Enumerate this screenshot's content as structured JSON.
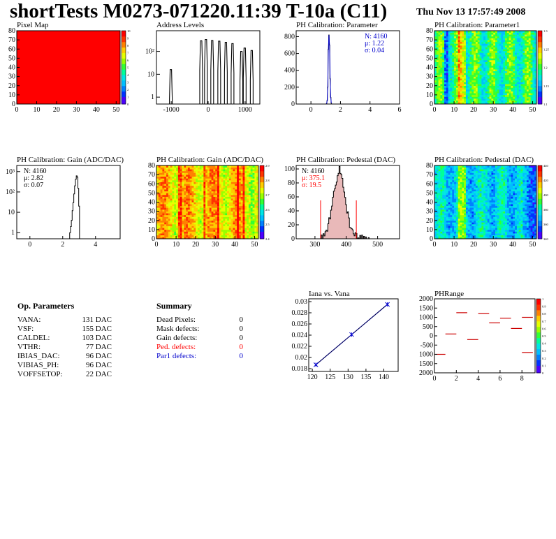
{
  "header": {
    "title": "shortTests M0273-071220.11:39 T-10a (C11)",
    "date": "Thu Nov 13 17:57:49 2008"
  },
  "colors": {
    "accent_blue": "#0000cc",
    "accent_red": "#ff0000",
    "hist_fill_red": "#cc3333"
  },
  "chart_data": [
    {
      "id": "pixel-map",
      "type": "heatmap",
      "title": "Pixel Map",
      "x_ticks": [
        "0",
        "10",
        "20",
        "30",
        "40",
        "50"
      ],
      "y_ticks": [
        "0",
        "10",
        "20",
        "30",
        "40",
        "50",
        "60",
        "70",
        "80"
      ],
      "xlim": [
        0,
        52
      ],
      "ylim": [
        0,
        80
      ],
      "uniform_value": 10,
      "colorbar_ticks": [
        "0",
        "1",
        "2",
        "3",
        "4",
        "5",
        "6",
        "7",
        "8",
        "9",
        "10"
      ]
    },
    {
      "id": "address-levels",
      "type": "bar",
      "title": "Address Levels",
      "log_y": true,
      "x_ticks": [
        "-1000",
        "0",
        "1000"
      ],
      "y_tick_labels": [
        "1",
        "10",
        "10²"
      ],
      "xlim": [
        -1400,
        1400
      ],
      "ylim": [
        0.5,
        800
      ],
      "peaks": [
        {
          "x": -1010,
          "y": 16
        },
        {
          "x": -190,
          "y": 290
        },
        {
          "x": -60,
          "y": 330
        },
        {
          "x": 110,
          "y": 300
        },
        {
          "x": 300,
          "y": 280
        },
        {
          "x": 480,
          "y": 250
        },
        {
          "x": 660,
          "y": 220
        },
        {
          "x": 900,
          "y": 100
        },
        {
          "x": 990,
          "y": 140
        },
        {
          "x": 1180,
          "y": 110
        }
      ]
    },
    {
      "id": "ph-cal-parameter",
      "type": "bar",
      "title": "PH Calibration: Parameter",
      "x_ticks": [
        "0",
        "2",
        "4",
        "6"
      ],
      "y_ticks": [
        "0",
        "200",
        "400",
        "600",
        "800"
      ],
      "xlim": [
        -1,
        6
      ],
      "ylim": [
        0,
        870
      ],
      "stats": [
        "N: 4160",
        "μ: 1.22",
        "σ: 0.04"
      ],
      "bins": [
        {
          "x": 1.06,
          "y": 5
        },
        {
          "x": 1.1,
          "y": 40
        },
        {
          "x": 1.14,
          "y": 200
        },
        {
          "x": 1.18,
          "y": 650
        },
        {
          "x": 1.22,
          "y": 820
        },
        {
          "x": 1.26,
          "y": 700
        },
        {
          "x": 1.3,
          "y": 300
        },
        {
          "x": 1.34,
          "y": 80
        },
        {
          "x": 1.38,
          "y": 10
        }
      ]
    },
    {
      "id": "ph-cal-parameter1",
      "type": "heatmap",
      "title": "PH Calibration: Parameter1",
      "x_ticks": [
        "0",
        "10",
        "20",
        "30",
        "40",
        "50"
      ],
      "y_ticks": [
        "0",
        "10",
        "20",
        "30",
        "40",
        "50",
        "60",
        "70",
        "80"
      ],
      "xlim": [
        0,
        52
      ],
      "ylim": [
        0,
        80
      ],
      "colorbar_ticks": [
        "1.1",
        "1.15",
        "1.2",
        "1.25",
        "1.3"
      ]
    },
    {
      "id": "ph-cal-gain-hist",
      "type": "bar",
      "title": "PH Calibration: Gain (ADC/DAC)",
      "log_y": true,
      "x_ticks": [
        "0",
        "2",
        "4"
      ],
      "y_tick_labels": [
        "1",
        "10",
        "10²",
        "10³"
      ],
      "xlim": [
        -0.8,
        5.5
      ],
      "ylim": [
        0.5,
        2000
      ],
      "stats": [
        "N: 4160",
        "μ: 2.82",
        "σ: 0.07"
      ],
      "bins": [
        {
          "x": 2.45,
          "y": 1
        },
        {
          "x": 2.5,
          "y": 2
        },
        {
          "x": 2.55,
          "y": 4
        },
        {
          "x": 2.6,
          "y": 12
        },
        {
          "x": 2.65,
          "y": 30
        },
        {
          "x": 2.7,
          "y": 80
        },
        {
          "x": 2.75,
          "y": 200
        },
        {
          "x": 2.8,
          "y": 420
        },
        {
          "x": 2.85,
          "y": 620
        },
        {
          "x": 2.9,
          "y": 540
        },
        {
          "x": 2.95,
          "y": 150
        },
        {
          "x": 3.0,
          "y": 20
        }
      ]
    },
    {
      "id": "ph-cal-gain-map",
      "type": "heatmap",
      "title": "PH Calibration: Gain (ADC/DAC)",
      "x_ticks": [
        "0",
        "10",
        "20",
        "30",
        "40",
        "50"
      ],
      "y_ticks": [
        "0",
        "10",
        "20",
        "30",
        "40",
        "50",
        "60",
        "70",
        "80"
      ],
      "xlim": [
        0,
        52
      ],
      "ylim": [
        0,
        80
      ],
      "colorbar_ticks": [
        "2.4",
        "2.5",
        "2.6",
        "2.7",
        "2.8",
        "2.9"
      ]
    },
    {
      "id": "ph-cal-pedestal-hist",
      "type": "bar",
      "title": "PH Calibration: Pedestal (DAC)",
      "x_ticks": [
        "300",
        "400",
        "500"
      ],
      "y_ticks": [
        "0",
        "20",
        "40",
        "60",
        "80",
        "100"
      ],
      "xlim": [
        240,
        570
      ],
      "ylim": [
        0,
        105
      ],
      "stats_black": [
        "N: 4160"
      ],
      "stats_red": [
        "μ: 375.1",
        "σ: 19.5"
      ],
      "cut_lines": [
        318,
        432
      ],
      "mean": 375,
      "sigma": 19.5,
      "peak": 90
    },
    {
      "id": "ph-cal-pedestal-map",
      "type": "heatmap",
      "title": "PH Calibration: Pedestal (DAC)",
      "x_ticks": [
        "0",
        "10",
        "20",
        "30",
        "40",
        "50"
      ],
      "y_ticks": [
        "0",
        "10",
        "20",
        "30",
        "40",
        "50",
        "60",
        "70",
        "80"
      ],
      "xlim": [
        0,
        52
      ],
      "ylim": [
        0,
        80
      ],
      "colorbar_ticks": [
        "340",
        "360",
        "380",
        "400",
        "420",
        "440"
      ]
    },
    {
      "id": "iana-vs-vana",
      "type": "line",
      "title": "Iana vs. Vana",
      "x_ticks": [
        "120",
        "125",
        "130",
        "135",
        "140"
      ],
      "y_ticks": [
        "0.018",
        "0.02",
        "0.022",
        "0.024",
        "0.026",
        "0.028",
        "0.03"
      ],
      "xlim": [
        119,
        144
      ],
      "ylim": [
        0.0175,
        0.0305
      ],
      "x": [
        121,
        131,
        141
      ],
      "y": [
        0.0187,
        0.0241,
        0.0295
      ]
    },
    {
      "id": "phrange",
      "type": "scatter",
      "title": "PHRange",
      "x_ticks": [
        "0",
        "2",
        "4",
        "6",
        "8"
      ],
      "y_ticks": [
        "2000",
        "1500",
        "1000",
        "500",
        "0",
        "-500",
        "1000",
        "1500",
        "2000"
      ],
      "xlim": [
        0,
        9.2
      ],
      "ylim": [
        -2000,
        2000
      ],
      "segments": [
        {
          "x": 0.5,
          "y": -1000
        },
        {
          "x": 1.5,
          "y": 100
        },
        {
          "x": 2.5,
          "y": 1250
        },
        {
          "x": 3.5,
          "y": -200
        },
        {
          "x": 4.5,
          "y": 1200
        },
        {
          "x": 5.5,
          "y": 700
        },
        {
          "x": 6.5,
          "y": 950
        },
        {
          "x": 7.5,
          "y": 400
        },
        {
          "x": 8.5,
          "y": 1000
        },
        {
          "x": 8.5,
          "y": -900
        }
      ],
      "colorbar_ticks": [
        "0",
        "0.1",
        "0.2",
        "0.3",
        "0.4",
        "0.5",
        "0.6",
        "0.7",
        "0.8",
        "0.9",
        "1"
      ]
    }
  ],
  "op_parameters": {
    "heading": "Op. Parameters",
    "rows": [
      {
        "name": "VANA:",
        "value": "131 DAC"
      },
      {
        "name": "VSF:",
        "value": "155 DAC"
      },
      {
        "name": "CALDEL:",
        "value": "103 DAC"
      },
      {
        "name": "VTHR:",
        "value": "77 DAC"
      },
      {
        "name": "IBIAS_DAC:",
        "value": "96 DAC"
      },
      {
        "name": "VIBIAS_PH:",
        "value": "96 DAC"
      },
      {
        "name": "VOFFSETOP:",
        "value": "22 DAC"
      }
    ]
  },
  "summary": {
    "heading": "Summary",
    "rows": [
      {
        "name": "Dead Pixels:",
        "value": "0",
        "color": "#000000"
      },
      {
        "name": "Mask defects:",
        "value": "0",
        "color": "#000000"
      },
      {
        "name": "Gain defects:",
        "value": "0",
        "color": "#000000"
      },
      {
        "name": "Ped. defects:",
        "value": "0",
        "color": "#ff0000"
      },
      {
        "name": "Par1 defects:",
        "value": "0",
        "color": "#0000cc"
      }
    ]
  }
}
